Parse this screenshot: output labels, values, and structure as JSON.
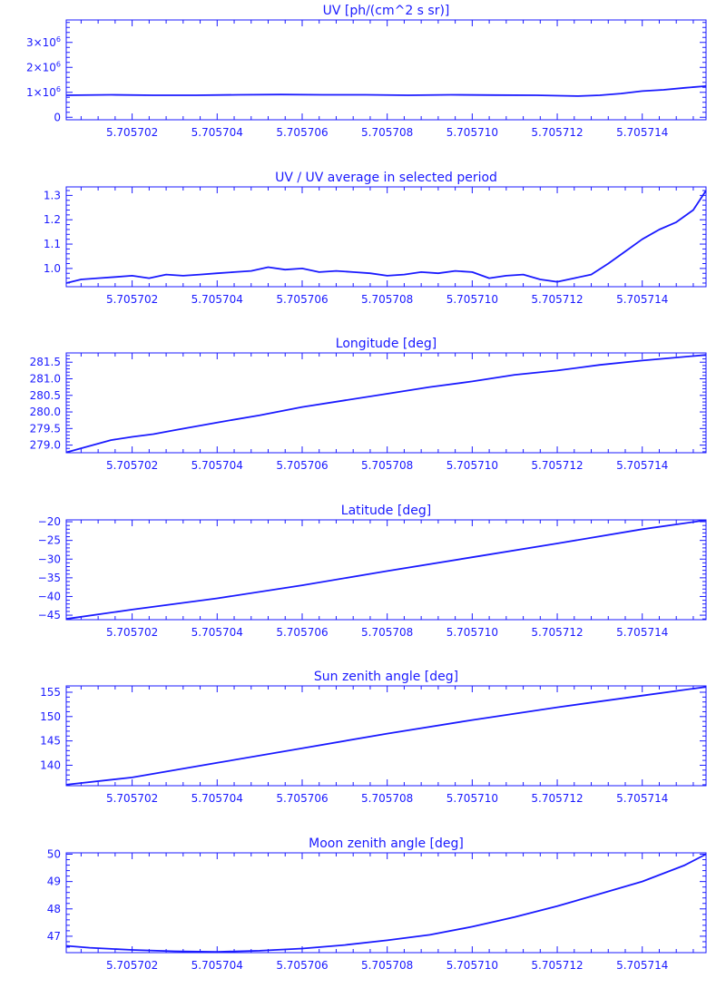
{
  "chart_data": [
    {
      "type": "line",
      "title": "UV [ph/(cm^2 s sr)]",
      "color": "#1a1aff",
      "xlim": [
        5.70570045,
        5.7057155
      ],
      "ylim": [
        -100000,
        3900000
      ],
      "xticks": [
        5.705702,
        5.705704,
        5.705706,
        5.705708,
        5.70571,
        5.705712,
        5.705714
      ],
      "xtick_labels": [
        "5.705702",
        "5.705704",
        "5.705706",
        "5.705708",
        "5.705710",
        "5.705712",
        "5.705714"
      ],
      "yticks": [
        0,
        1000000,
        2000000,
        3000000
      ],
      "ytick_labels": [
        {
          "base": "0",
          "exp": ""
        },
        {
          "base": "1×10",
          "exp": "6"
        },
        {
          "base": "2×10",
          "exp": "6"
        },
        {
          "base": "3×10",
          "exp": "6"
        }
      ],
      "x": [
        5.70570045,
        5.7057015,
        5.7057025,
        5.7057035,
        5.7057045,
        5.7057055,
        5.7057065,
        5.7057075,
        5.7057085,
        5.7057095,
        5.7057105,
        5.7057115,
        5.7057125,
        5.705713,
        5.7057135,
        5.705714,
        5.7057145,
        5.705715,
        5.7057155
      ],
      "y": [
        880000,
        900000,
        880000,
        880000,
        900000,
        910000,
        900000,
        900000,
        880000,
        900000,
        890000,
        880000,
        850000,
        880000,
        950000,
        1050000,
        1100000,
        1180000,
        1250000
      ]
    },
    {
      "type": "line",
      "title": "UV / UV average in selected period",
      "color": "#1a1aff",
      "xlim": [
        5.70570045,
        5.7057155
      ],
      "ylim": [
        0.925,
        1.335
      ],
      "xticks": [
        5.705702,
        5.705704,
        5.705706,
        5.705708,
        5.70571,
        5.705712,
        5.705714
      ],
      "xtick_labels": [
        "5.705702",
        "5.705704",
        "5.705706",
        "5.705708",
        "5.705710",
        "5.705712",
        "5.705714"
      ],
      "yticks": [
        1.0,
        1.1,
        1.2,
        1.3
      ],
      "ytick_labels": [
        "1.0",
        "1.1",
        "1.2",
        "1.3"
      ],
      "x": [
        5.70570045,
        5.7057008,
        5.7057012,
        5.7057016,
        5.705702,
        5.7057024,
        5.7057028,
        5.7057032,
        5.7057036,
        5.705704,
        5.7057044,
        5.7057048,
        5.7057052,
        5.7057056,
        5.705706,
        5.7057064,
        5.7057068,
        5.7057072,
        5.7057076,
        5.705708,
        5.7057084,
        5.7057088,
        5.7057092,
        5.7057096,
        5.70571,
        5.7057104,
        5.7057108,
        5.7057112,
        5.7057116,
        5.705712,
        5.7057124,
        5.7057128,
        5.7057132,
        5.7057136,
        5.705714,
        5.7057144,
        5.7057148,
        5.7057152,
        5.7057155
      ],
      "y": [
        0.94,
        0.955,
        0.96,
        0.965,
        0.97,
        0.96,
        0.975,
        0.97,
        0.975,
        0.98,
        0.985,
        0.99,
        1.005,
        0.995,
        1.0,
        0.985,
        0.99,
        0.985,
        0.98,
        0.97,
        0.975,
        0.985,
        0.98,
        0.99,
        0.985,
        0.96,
        0.97,
        0.975,
        0.955,
        0.945,
        0.96,
        0.975,
        1.02,
        1.07,
        1.12,
        1.16,
        1.19,
        1.24,
        1.32
      ]
    },
    {
      "type": "line",
      "title": "Longitude [deg]",
      "color": "#1a1aff",
      "xlim": [
        5.70570045,
        5.7057155
      ],
      "ylim": [
        278.77,
        281.78
      ],
      "xticks": [
        5.705702,
        5.705704,
        5.705706,
        5.705708,
        5.70571,
        5.705712,
        5.705714
      ],
      "xtick_labels": [
        "5.705702",
        "5.705704",
        "5.705706",
        "5.705708",
        "5.705710",
        "5.705712",
        "5.705714"
      ],
      "yticks": [
        279.0,
        279.5,
        280.0,
        280.5,
        281.0,
        281.5
      ],
      "ytick_labels": [
        "279.0",
        "279.5",
        "280.0",
        "280.5",
        "281.0",
        "281.5"
      ],
      "x": [
        5.70570045,
        5.7057015,
        5.705702,
        5.7057025,
        5.705703,
        5.705704,
        5.705705,
        5.705706,
        5.705707,
        5.705708,
        5.705709,
        5.70571,
        5.705711,
        5.705712,
        5.705713,
        5.705714,
        5.7057155
      ],
      "y": [
        278.78,
        279.15,
        279.25,
        279.33,
        279.45,
        279.68,
        279.9,
        280.15,
        280.35,
        280.55,
        280.75,
        280.92,
        281.12,
        281.25,
        281.42,
        281.55,
        281.72
      ]
    },
    {
      "type": "line",
      "title": "Latitude [deg]",
      "color": "#1a1aff",
      "xlim": [
        5.70570045,
        5.7057155
      ],
      "ylim": [
        -46.2,
        -19.5
      ],
      "xticks": [
        5.705702,
        5.705704,
        5.705706,
        5.705708,
        5.70571,
        5.705712,
        5.705714
      ],
      "xtick_labels": [
        "5.705702",
        "5.705704",
        "5.705706",
        "5.705708",
        "5.705710",
        "5.705712",
        "5.705714"
      ],
      "yticks": [
        -45,
        -40,
        -35,
        -30,
        -25,
        -20
      ],
      "ytick_labels": [
        "−45",
        "−40",
        "−35",
        "−30",
        "−25",
        "−20"
      ],
      "x": [
        5.70570045,
        5.705702,
        5.705704,
        5.705706,
        5.705708,
        5.70571,
        5.705712,
        5.705714,
        5.7057155
      ],
      "y": [
        -46.0,
        -43.5,
        -40.5,
        -37.0,
        -33.2,
        -29.5,
        -25.8,
        -22.0,
        -19.6
      ]
    },
    {
      "type": "line",
      "title": "Sun zenith angle [deg]",
      "color": "#1a1aff",
      "xlim": [
        5.70570045,
        5.7057155
      ],
      "ylim": [
        135.8,
        156.3
      ],
      "xticks": [
        5.705702,
        5.705704,
        5.705706,
        5.705708,
        5.70571,
        5.705712,
        5.705714
      ],
      "xtick_labels": [
        "5.705702",
        "5.705704",
        "5.705706",
        "5.705708",
        "5.705710",
        "5.705712",
        "5.705714"
      ],
      "yticks": [
        140,
        145,
        150,
        155
      ],
      "ytick_labels": [
        "140",
        "145",
        "150",
        "155"
      ],
      "x": [
        5.70570045,
        5.705702,
        5.705704,
        5.705706,
        5.705708,
        5.70571,
        5.705712,
        5.705714,
        5.7057155
      ],
      "y": [
        136.0,
        137.5,
        140.5,
        143.5,
        146.5,
        149.3,
        151.9,
        154.3,
        156.1
      ]
    },
    {
      "type": "line",
      "title": "Moon zenith angle [deg]",
      "color": "#1a1aff",
      "xlim": [
        5.70570045,
        5.7057155
      ],
      "ylim": [
        46.4,
        50.05
      ],
      "xticks": [
        5.705702,
        5.705704,
        5.705706,
        5.705708,
        5.70571,
        5.705712,
        5.705714
      ],
      "xtick_labels": [
        "5.705702",
        "5.705704",
        "5.705706",
        "5.705708",
        "5.705710",
        "5.705712",
        "5.705714"
      ],
      "yticks": [
        47,
        48,
        49,
        50
      ],
      "ytick_labels": [
        "47",
        "48",
        "49",
        "50"
      ],
      "x": [
        5.70570045,
        5.705701,
        5.705702,
        5.705703,
        5.705704,
        5.705705,
        5.705706,
        5.705707,
        5.705708,
        5.705709,
        5.70571,
        5.705711,
        5.705712,
        5.705713,
        5.705714,
        5.705715,
        5.7057155
      ],
      "y": [
        46.65,
        46.58,
        46.5,
        46.45,
        46.43,
        46.47,
        46.55,
        46.68,
        46.85,
        47.05,
        47.35,
        47.7,
        48.1,
        48.55,
        49.0,
        49.6,
        50.0
      ]
    }
  ]
}
